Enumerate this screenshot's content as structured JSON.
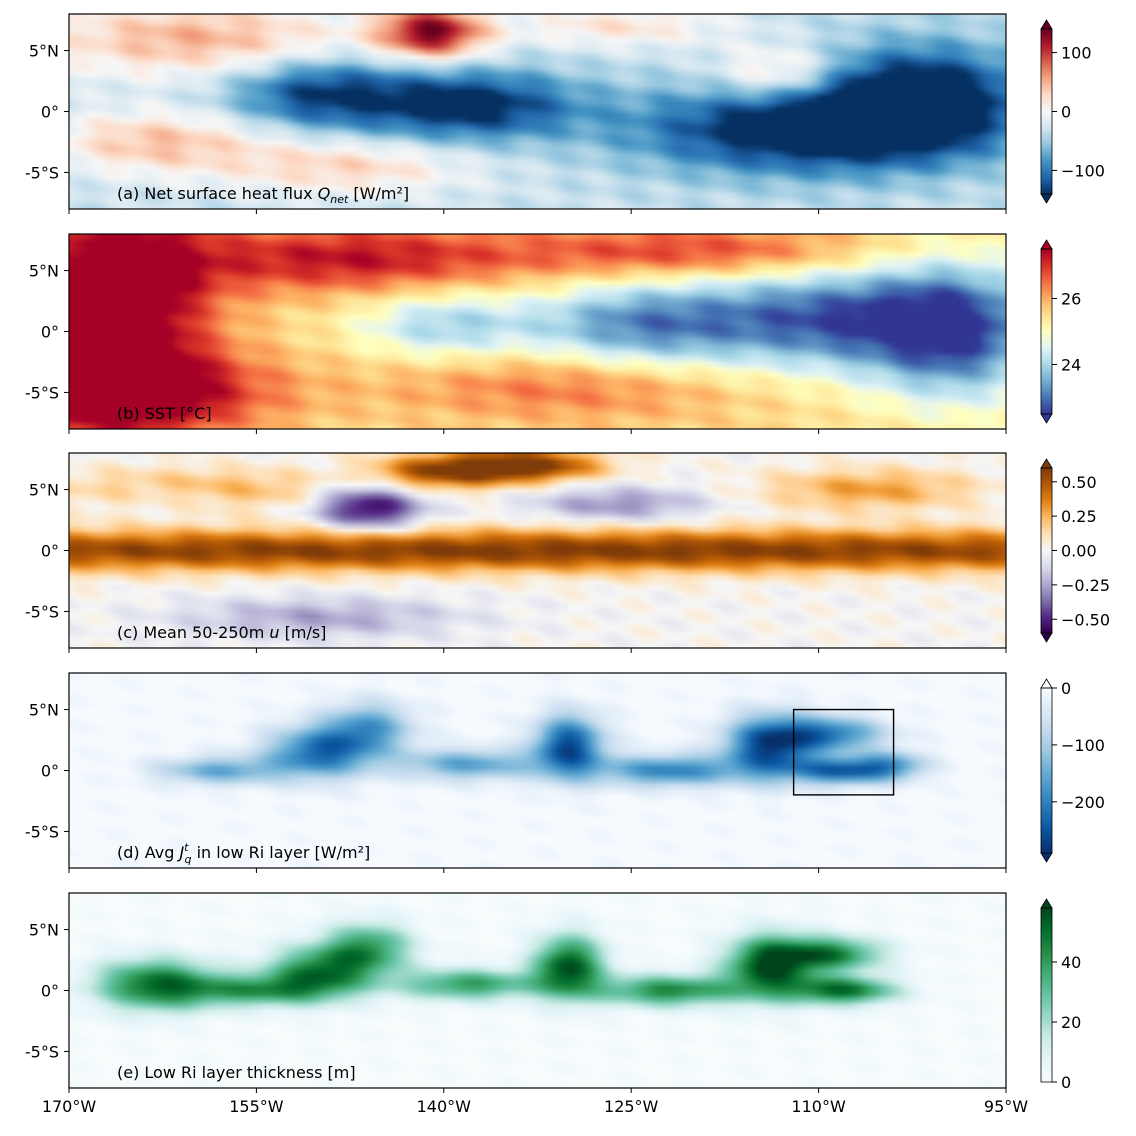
{
  "chart_data": [
    {
      "type": "heatmap",
      "label": "(a) Net surface heat flux ",
      "label_math": "Q",
      "label_math_sub": "net",
      "label_unit": " [W/m²]",
      "colormap": "RdBu_r",
      "colors": [
        "#053061",
        "#2166ac",
        "#4393c3",
        "#92c5de",
        "#d1e5f0",
        "#f7f7f7",
        "#fddbc7",
        "#f4a582",
        "#d6604d",
        "#b2182b",
        "#67001f"
      ],
      "vmin": -140,
      "vmax": 140,
      "extend": "both",
      "colorbar_ticks": [
        100,
        0,
        -100
      ],
      "colorbar_tick_labels": [
        "100",
        "0",
        "−100"
      ],
      "base_value": -30,
      "features": [
        {
          "x": -160,
          "y": 6.0,
          "v": 80,
          "sx": 9,
          "sy": 2.2
        },
        {
          "x": -141,
          "y": 6.5,
          "v": 160,
          "sx": 3,
          "sy": 1.5
        },
        {
          "x": -126,
          "y": 7.0,
          "v": 50,
          "sx": 6,
          "sy": 1.2
        },
        {
          "x": -113,
          "y": 3.0,
          "v": 70,
          "sx": 3.5,
          "sy": 1.6
        },
        {
          "x": -163,
          "y": -2.5,
          "v": 70,
          "sx": 6,
          "sy": 1.8
        },
        {
          "x": -148,
          "y": -4.5,
          "v": 60,
          "sx": 7,
          "sy": 1.6
        },
        {
          "x": -138,
          "y": 0.5,
          "v": -120,
          "sx": 6,
          "sy": 2.0
        },
        {
          "x": -112,
          "y": -1.5,
          "v": -130,
          "sx": 9,
          "sy": 2.5
        },
        {
          "x": -102,
          "y": 1.0,
          "v": -140,
          "sx": 6,
          "sy": 3.0
        },
        {
          "x": -150,
          "y": 1.5,
          "v": -100,
          "sx": 5,
          "sy": 2.0
        }
      ]
    },
    {
      "type": "heatmap",
      "label": "(b) SST [°C]",
      "colormap": "RdYlBu_r",
      "colors": [
        "#313695",
        "#4575b4",
        "#74add1",
        "#abd9e9",
        "#e0f3f8",
        "#ffffbf",
        "#fee090",
        "#fdae61",
        "#f46d43",
        "#d73027",
        "#a50026"
      ],
      "vmin": 22.5,
      "vmax": 27.5,
      "extend": "both",
      "colorbar_ticks": [
        26,
        24
      ],
      "colorbar_tick_labels": [
        "26",
        "24"
      ],
      "base_value": 25.5,
      "features": [
        {
          "x": -166,
          "y": 3.0,
          "v": 2.8,
          "sx": 5,
          "sy": 5.5
        },
        {
          "x": -166,
          "y": -5.0,
          "v": 2.5,
          "sx": 8,
          "sy": 2.5
        },
        {
          "x": -148,
          "y": 6.0,
          "v": 1.8,
          "sx": 10,
          "sy": 2.0
        },
        {
          "x": -120,
          "y": 6.5,
          "v": 1.5,
          "sx": 10,
          "sy": 1.5
        },
        {
          "x": -130,
          "y": -4.5,
          "v": 1.0,
          "sx": 10,
          "sy": 2.0
        },
        {
          "x": -140,
          "y": 0.5,
          "v": -1.5,
          "sx": 5,
          "sy": 2.0
        },
        {
          "x": -125,
          "y": 0.5,
          "v": -2.0,
          "sx": 6,
          "sy": 2.5
        },
        {
          "x": -110,
          "y": 1.0,
          "v": -2.6,
          "sx": 8,
          "sy": 3.0
        },
        {
          "x": -99,
          "y": 0.0,
          "v": -2.6,
          "sx": 5,
          "sy": 4.0
        }
      ]
    },
    {
      "type": "heatmap",
      "label": "(c) Mean 50-250m ",
      "label_math": "u",
      "label_unit": " [m/s]",
      "colormap": "PuOr_r",
      "colors": [
        "#2d004b",
        "#542788",
        "#8073ac",
        "#b2abd2",
        "#d8daeb",
        "#f7f7f7",
        "#fee0b6",
        "#fdb863",
        "#e08214",
        "#b35806",
        "#7f3b08"
      ],
      "vmin": -0.6,
      "vmax": 0.6,
      "extend": "both",
      "colorbar_ticks": [
        0.5,
        0.25,
        0.0,
        -0.25,
        -0.5
      ],
      "colorbar_tick_labels": [
        "0.50",
        "0.25",
        "0.00",
        "−0.25",
        "−0.50"
      ],
      "base_value": 0.0,
      "features": [
        {
          "x": -132,
          "y": 0.0,
          "v": 0.6,
          "sx": 80,
          "sy": 1.2
        },
        {
          "x": -140,
          "y": 6.5,
          "v": 0.55,
          "sx": 4,
          "sy": 1.0
        },
        {
          "x": -133,
          "y": 7.0,
          "v": 0.6,
          "sx": 4,
          "sy": 0.9
        },
        {
          "x": -160,
          "y": 5.0,
          "v": 0.3,
          "sx": 8,
          "sy": 1.2
        },
        {
          "x": -106,
          "y": 5.0,
          "v": 0.3,
          "sx": 6,
          "sy": 1.2
        },
        {
          "x": -146,
          "y": 3.5,
          "v": -0.6,
          "sx": 3,
          "sy": 1.3
        },
        {
          "x": -126,
          "y": 3.8,
          "v": -0.3,
          "sx": 5,
          "sy": 1.0
        },
        {
          "x": -150,
          "y": -5.5,
          "v": -0.25,
          "sx": 8,
          "sy": 1.2
        },
        {
          "x": -162,
          "y": 4.5,
          "v": -0.15,
          "sx": 4,
          "sy": 1.0
        }
      ]
    },
    {
      "type": "heatmap",
      "label": "(d) Avg ",
      "label_math": "J",
      "label_math_sup": "t",
      "label_math_sub": "q",
      "label_unit": " in low Ri layer [W/m²]",
      "colormap": "Blues_r",
      "colors": [
        "#08306b",
        "#08519c",
        "#2171b5",
        "#4292c6",
        "#6baed6",
        "#9ecae1",
        "#c6dbef",
        "#deebf7",
        "#f7fbff"
      ],
      "vmin": -290,
      "vmax": 0,
      "extend": "both",
      "colorbar_ticks": [
        0,
        -100,
        -200
      ],
      "colorbar_tick_labels": [
        "0",
        "−100",
        "−200"
      ],
      "base_value": 0,
      "features": [
        {
          "x": -158,
          "y": 0.0,
          "v": -150,
          "sx": 3.5,
          "sy": 0.8
        },
        {
          "x": -150,
          "y": 1.5,
          "v": -220,
          "sx": 3.0,
          "sy": 1.5
        },
        {
          "x": -146,
          "y": 3.5,
          "v": -160,
          "sx": 2.5,
          "sy": 1.5
        },
        {
          "x": -138,
          "y": 0.5,
          "v": -160,
          "sx": 4,
          "sy": 0.9
        },
        {
          "x": -130,
          "y": 2.0,
          "v": -260,
          "sx": 2.0,
          "sy": 1.8
        },
        {
          "x": -122,
          "y": 0.0,
          "v": -200,
          "sx": 4,
          "sy": 0.9
        },
        {
          "x": -114,
          "y": 2.0,
          "v": -260,
          "sx": 2.5,
          "sy": 1.8
        },
        {
          "x": -109,
          "y": 3.0,
          "v": -200,
          "sx": 3.0,
          "sy": 1.0
        },
        {
          "x": -108,
          "y": 0.0,
          "v": -230,
          "sx": 3.0,
          "sy": 0.8
        },
        {
          "x": -104,
          "y": 0.5,
          "v": -120,
          "sx": 2.0,
          "sy": 0.8
        }
      ],
      "box": {
        "x0": -112,
        "x1": -104,
        "y0": -2,
        "y1": 5
      }
    },
    {
      "type": "heatmap",
      "label": "(e) Low Ri layer thickness [m]",
      "colormap": "BuGn",
      "colors": [
        "#f7fcfd",
        "#e5f5f9",
        "#ccece6",
        "#99d8c9",
        "#66c2a4",
        "#41ae76",
        "#238b45",
        "#006d2c",
        "#00441b"
      ],
      "vmin": 0,
      "vmax": 58,
      "extend": "max",
      "colorbar_ticks": [
        40,
        20,
        0
      ],
      "colorbar_tick_labels": [
        "40",
        "20",
        "0"
      ],
      "base_value": 0,
      "features": [
        {
          "x": -163,
          "y": 0.5,
          "v": 50,
          "sx": 3.5,
          "sy": 1.5
        },
        {
          "x": -155,
          "y": 0.0,
          "v": 35,
          "sx": 4,
          "sy": 0.9
        },
        {
          "x": -150,
          "y": 1.5,
          "v": 45,
          "sx": 3.0,
          "sy": 1.5
        },
        {
          "x": -146,
          "y": 3.5,
          "v": 38,
          "sx": 2.5,
          "sy": 1.5
        },
        {
          "x": -138,
          "y": 0.5,
          "v": 40,
          "sx": 4,
          "sy": 0.9
        },
        {
          "x": -130,
          "y": 2.0,
          "v": 55,
          "sx": 2.0,
          "sy": 1.8
        },
        {
          "x": -122,
          "y": 0.0,
          "v": 45,
          "sx": 4,
          "sy": 0.9
        },
        {
          "x": -114,
          "y": 2.0,
          "v": 55,
          "sx": 2.5,
          "sy": 1.8
        },
        {
          "x": -109,
          "y": 3.0,
          "v": 45,
          "sx": 3.0,
          "sy": 1.0
        },
        {
          "x": -108,
          "y": 0.0,
          "v": 50,
          "sx": 3.0,
          "sy": 0.8
        }
      ]
    }
  ],
  "axes": {
    "xlim": [
      -170,
      -95
    ],
    "ylim": [
      -8,
      8
    ],
    "x_ticks": [
      -170,
      -155,
      -140,
      -125,
      -110,
      -95
    ],
    "x_tick_labels": [
      "170°W",
      "155°W",
      "140°W",
      "125°W",
      "110°W",
      "95°W"
    ],
    "y_ticks": [
      5,
      0,
      -5
    ],
    "y_tick_labels": [
      "5°N",
      "0°",
      "-5°S"
    ]
  }
}
